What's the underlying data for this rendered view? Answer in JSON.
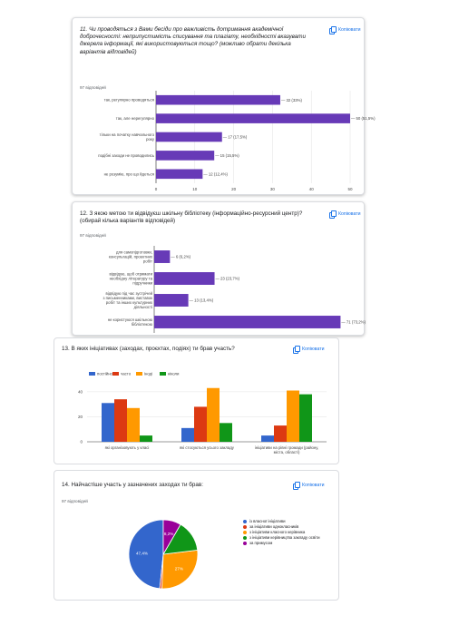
{
  "copy_label": "Копіювати",
  "q11": {
    "title": "11. Чи проводяться з Вами бесіди про важливість дотримання академічної доброчесності: неприпустимість списування та плагіату, необхідності вказувати джерела інформації, які використовуються тощо? (можливо обрати декілька варіантів відповідей)",
    "count": "97 відповідей"
  },
  "q12": {
    "title": "12. З якою метою ти відвідуєш шкільну бібліотеку (інформаційно-ресурсний центр)? (обирай кілька варіантів відповідей)",
    "count": "97 відповідей"
  },
  "q13": {
    "title": "13. В яких ініціативах (заходах, проєктах, подіях) ти брав участь?"
  },
  "q14": {
    "title": "14. Найчастіше участь у зазначених заходах ти брав:",
    "count": "97 відповідей"
  },
  "chart_data": [
    {
      "type": "bar",
      "orientation": "horizontal",
      "categories": [
        "так, регулярно проводяться",
        "так, але нерегулярно",
        "тільки на початку навчального року",
        "подібні заходи не проводились",
        "не розумію, про що йдеться"
      ],
      "values": [
        32,
        50,
        17,
        15,
        12
      ],
      "data_labels": [
        "32 (33%)",
        "50 (51,5%)",
        "17 (17,5%)",
        "15 (15,5%)",
        "12 (12,4%)"
      ],
      "xlim": [
        0,
        50
      ],
      "xticks": [
        "0",
        "10",
        "20",
        "30",
        "40",
        "50"
      ],
      "color": "#673ab7"
    },
    {
      "type": "bar",
      "orientation": "horizontal",
      "categories": [
        "для самопідготовки, консультацій, проектних робіт",
        "відвідую, щоб отримати необхідну літературу та підручники",
        "відвідую під час зустрічей з письменниками, виставок робіт та інших культурних діяльності",
        "не користуюся шкільною бібліотекою"
      ],
      "values": [
        6,
        23,
        13,
        71
      ],
      "data_labels": [
        "6 (6,2%)",
        "23 (23,7%)",
        "13 (13,4%)",
        "71 (73,2%)"
      ],
      "xlim": [
        0,
        75
      ],
      "color": "#673ab7"
    },
    {
      "type": "bar",
      "categories": [
        "які організовують у класі",
        "які стосуються усього закладу",
        "ініціативи на рівні громади (району, міста, області)"
      ],
      "series": [
        {
          "name": "постійно",
          "values": [
            31,
            11,
            5
          ],
          "color": "#3366cc"
        },
        {
          "name": "часто",
          "values": [
            34,
            28,
            13
          ],
          "color": "#dc3912"
        },
        {
          "name": "іноді",
          "values": [
            27,
            43,
            41
          ],
          "color": "#ff9900"
        },
        {
          "name": "ніколи",
          "values": [
            5,
            15,
            38
          ],
          "color": "#109618"
        }
      ],
      "ylim": [
        0,
        45
      ],
      "yticks": [
        "0",
        "20",
        "40"
      ],
      "legend": "top-left"
    },
    {
      "type": "pie",
      "labels": [
        "із власної ініціативи",
        "за ініціативи однокласників",
        "з ініціативи класного керівника",
        "з ініціативи керівництва закладу освіти",
        "за примусом"
      ],
      "values": [
        47.4,
        1.0,
        27,
        14.4,
        8.2
      ],
      "slice_labels": [
        "47,4%",
        "",
        "27%",
        "",
        "8,2%"
      ],
      "colors": [
        "#3366cc",
        "#dc3912",
        "#ff9900",
        "#109618",
        "#990099"
      ],
      "legend": "right"
    }
  ]
}
